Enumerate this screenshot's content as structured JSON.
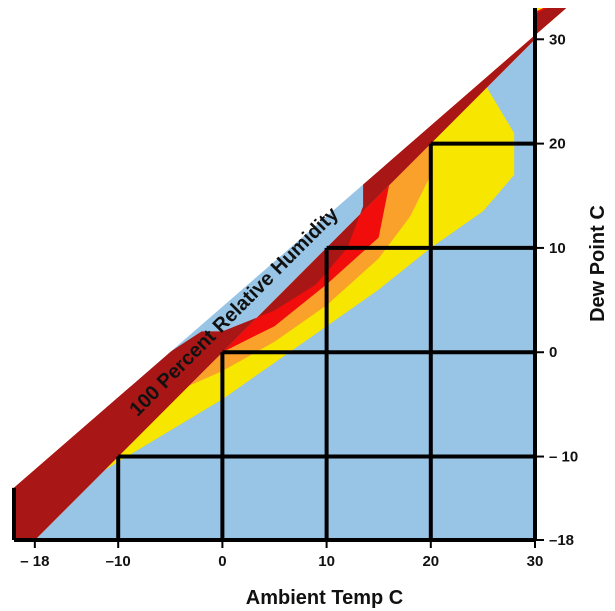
{
  "chart_data": {
    "type": "heatmap",
    "title": "",
    "xlabel": "Ambient Temp  C",
    "ylabel": "Dew Point  C",
    "xlim": [
      -20,
      30
    ],
    "ylim": [
      -18,
      33
    ],
    "x_ticks": [
      {
        "value": -18,
        "label": "– 18"
      },
      {
        "value": -10,
        "label": "–10"
      },
      {
        "value": 0,
        "label": "0"
      },
      {
        "value": 10,
        "label": "10"
      },
      {
        "value": 20,
        "label": "20"
      },
      {
        "value": 30,
        "label": "30"
      }
    ],
    "y_ticks": [
      {
        "value": 30,
        "label": "30"
      },
      {
        "value": 20,
        "label": "20"
      },
      {
        "value": 10,
        "label": "10"
      },
      {
        "value": 0,
        "label": "0"
      },
      {
        "value": -10,
        "label": "– 10"
      },
      {
        "value": -18,
        "label": "–18"
      }
    ],
    "grid": true,
    "boundary_label": "100 Percent Relative Humidity",
    "colors": {
      "background": "#98C4E6",
      "yellow": "#F6E600",
      "orange": "#F9A12B",
      "red": "#F20D0D",
      "dark_red": "#A91616",
      "grid": "#000000"
    },
    "bands": [
      {
        "name": "yellow",
        "boundary": [
          [
            -20,
            -13
          ],
          [
            -18,
            -14
          ],
          [
            -14,
            -13
          ],
          [
            -10,
            -10.5
          ],
          [
            -5,
            -7.5
          ],
          [
            0,
            -4.5
          ],
          [
            5,
            -1
          ],
          [
            10,
            2.5
          ],
          [
            15,
            6
          ],
          [
            20,
            10
          ],
          [
            25,
            13.5
          ],
          [
            28,
            17
          ],
          [
            28,
            21
          ],
          [
            25,
            26
          ],
          [
            20,
            30.5
          ],
          [
            19,
            30
          ]
        ]
      },
      {
        "name": "orange",
        "boundary": [
          [
            -13,
            -6.5
          ],
          [
            -10,
            -6.2
          ],
          [
            -5,
            -4
          ],
          [
            0,
            -1.8
          ],
          [
            5,
            1
          ],
          [
            10,
            4.5
          ],
          [
            15,
            9
          ],
          [
            18,
            13
          ],
          [
            20,
            17
          ],
          [
            20,
            21
          ],
          [
            18,
            24.5
          ],
          [
            15,
            25.5
          ]
        ]
      },
      {
        "name": "red",
        "boundary": [
          [
            -10,
            -3.5
          ],
          [
            -5,
            -2.5
          ],
          [
            0,
            0
          ],
          [
            5,
            2.5
          ],
          [
            10,
            6.5
          ],
          [
            15,
            11
          ],
          [
            16,
            16
          ],
          [
            15,
            21
          ],
          [
            12,
            24
          ]
        ]
      },
      {
        "name": "dark_red",
        "boundary": [
          [
            -2,
            2
          ],
          [
            0,
            2
          ],
          [
            5,
            4
          ],
          [
            9,
            6.5
          ],
          [
            12,
            10
          ],
          [
            13.5,
            14
          ],
          [
            13.5,
            18
          ],
          [
            12,
            22
          ],
          [
            10,
            22
          ]
        ]
      }
    ]
  }
}
